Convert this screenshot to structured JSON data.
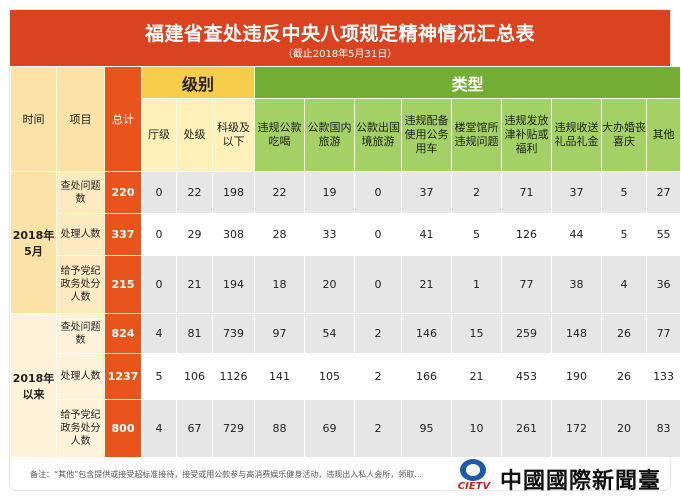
{
  "header": {
    "title": "福建省查处违反中央八项规定精神情况汇总表",
    "subtitle": "（截止2018年5月31日）"
  },
  "columns": {
    "time": "时间",
    "item": "项目",
    "total": "总计",
    "level_group": "级别",
    "type_group": "类型",
    "level": [
      "厅级",
      "处级",
      "科级及以下"
    ],
    "type": [
      "违规公款吃喝",
      "公款国内旅游",
      "公款出国境旅游",
      "违规配备使用公务用车",
      "楼堂馆所违规问题",
      "违规发放津补贴或福利",
      "违规收送礼品礼金",
      "大办婚丧喜庆",
      "其他"
    ]
  },
  "groups": [
    {
      "time": "2018年5月",
      "rows": [
        {
          "item": "查处问题数",
          "total": "220",
          "values": [
            "0",
            "22",
            "198",
            "22",
            "19",
            "0",
            "37",
            "2",
            "71",
            "37",
            "5",
            "27"
          ]
        },
        {
          "item": "处理人数",
          "total": "337",
          "values": [
            "0",
            "29",
            "308",
            "28",
            "33",
            "0",
            "41",
            "5",
            "126",
            "44",
            "5",
            "55"
          ]
        },
        {
          "item": "给予党纪政务处分人数",
          "total": "215",
          "values": [
            "0",
            "21",
            "194",
            "18",
            "20",
            "0",
            "21",
            "1",
            "77",
            "38",
            "4",
            "36"
          ]
        }
      ]
    },
    {
      "time": "2018年以来",
      "rows": [
        {
          "item": "查处问题数",
          "total": "824",
          "values": [
            "4",
            "81",
            "739",
            "97",
            "54",
            "2",
            "146",
            "15",
            "259",
            "148",
            "26",
            "77"
          ]
        },
        {
          "item": "处理人数",
          "total": "1237",
          "values": [
            "5",
            "106",
            "1126",
            "141",
            "105",
            "2",
            "166",
            "21",
            "453",
            "190",
            "26",
            "133"
          ]
        },
        {
          "item": "给予党纪政务处分人数",
          "total": "800",
          "values": [
            "4",
            "67",
            "729",
            "88",
            "69",
            "2",
            "95",
            "10",
            "261",
            "172",
            "20",
            "83"
          ]
        }
      ]
    }
  ],
  "footnote": "备注：“其他”包含提供或接受超标准接待，接受或用公款参与高消费娱乐健身活动，违规出入私人会所，领取…",
  "watermark": {
    "logo_text": "CIETV",
    "name": "中國國際新聞臺"
  },
  "colors": {
    "header": "#d9431f",
    "level_group": "#f5cd4b",
    "type_group": "#74ad34",
    "total": "#e8541c"
  }
}
